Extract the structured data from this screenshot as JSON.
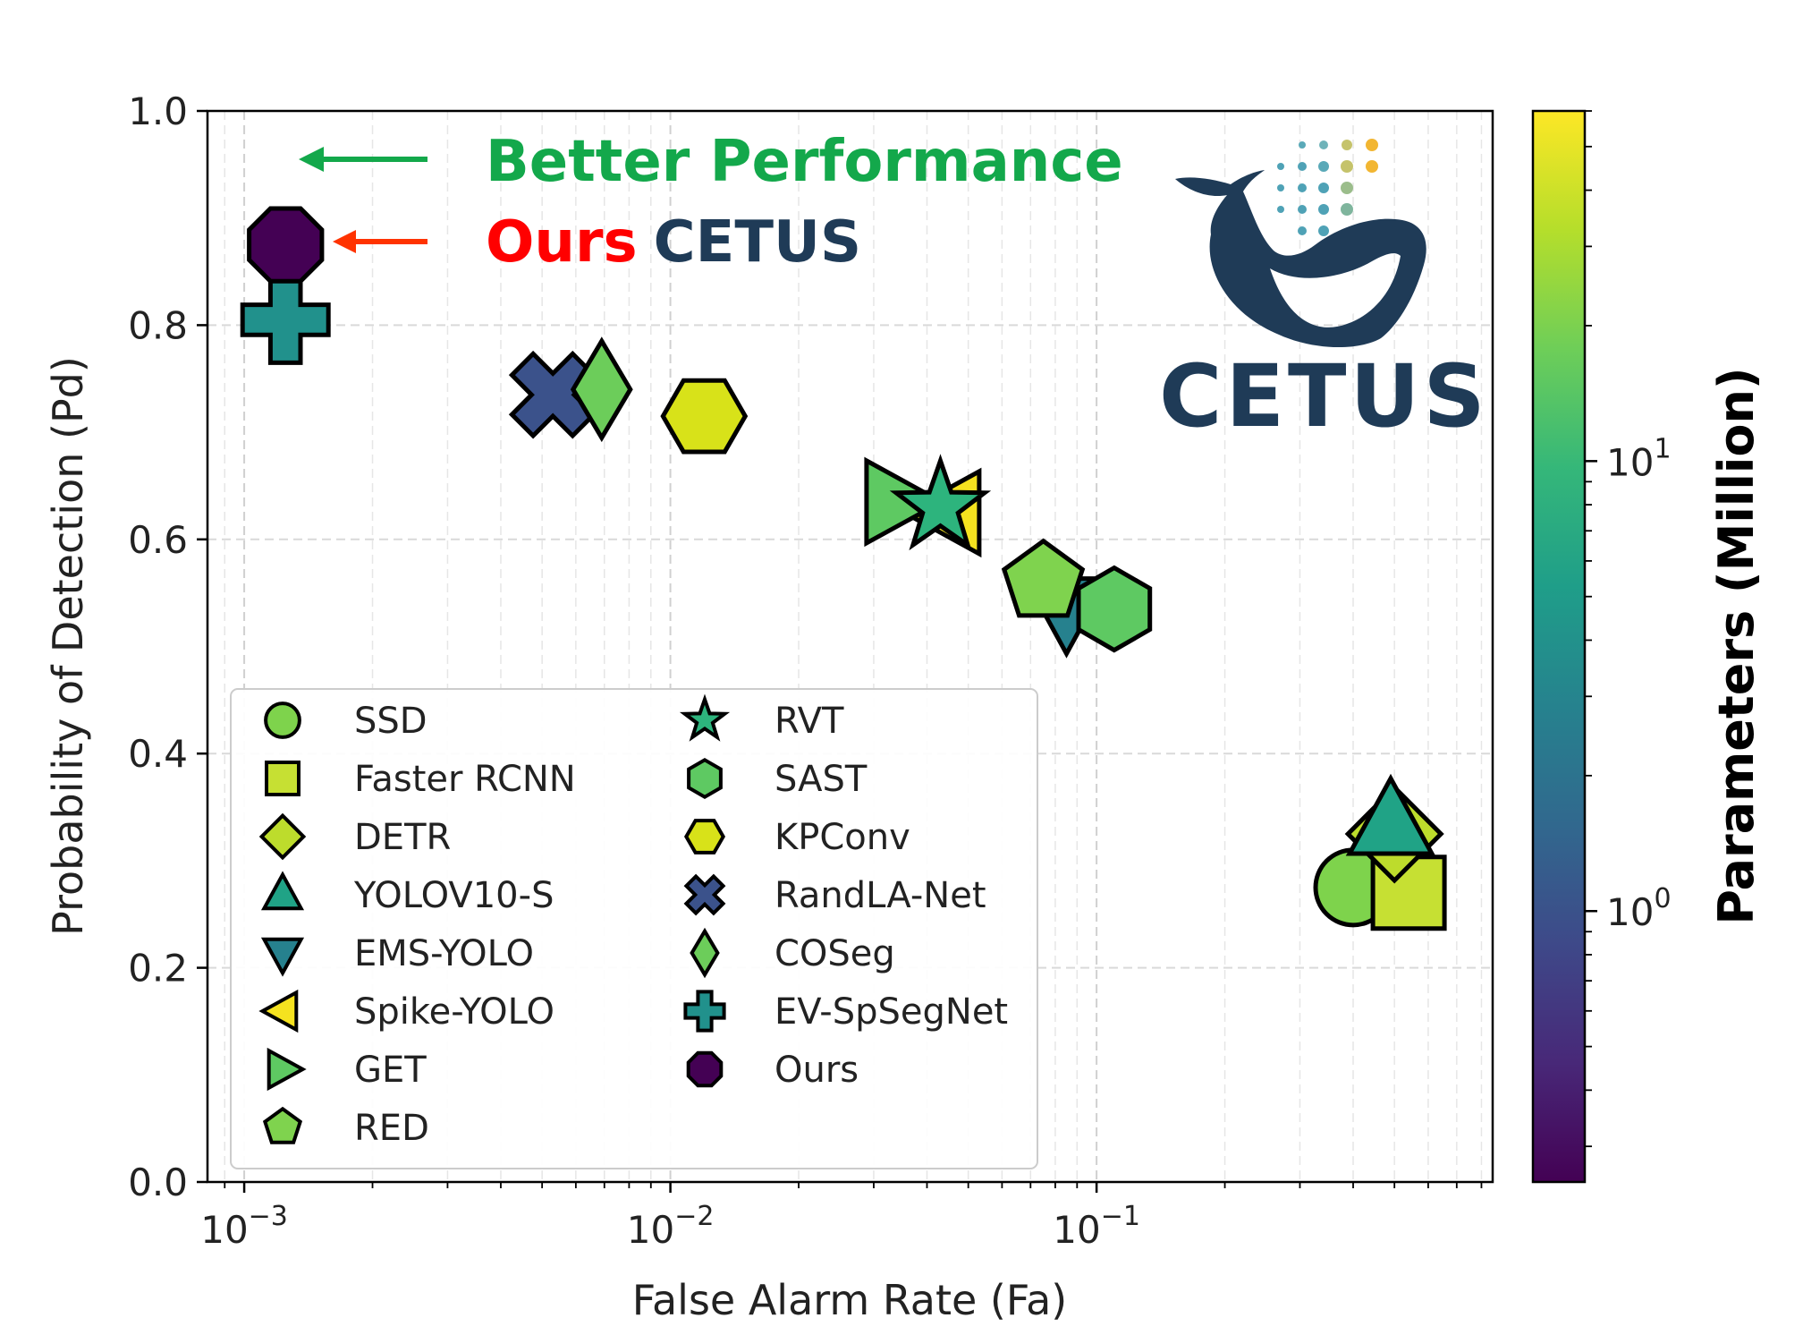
{
  "chart_data": {
    "type": "scatter",
    "xlabel": "False Alarm Rate (Fa)",
    "ylabel": "Probability of Detection (Pd)",
    "xscale": "log",
    "xlim": [
      0.00082,
      0.85
    ],
    "ylim": [
      0.0,
      1.0
    ],
    "yticks": [
      "0.0",
      "0.2",
      "0.4",
      "0.6",
      "0.8",
      "1.0"
    ],
    "xticks": [
      {
        "base": "10",
        "exp": "−3",
        "value": 0.001
      },
      {
        "base": "10",
        "exp": "−2",
        "value": 0.01
      },
      {
        "base": "10",
        "exp": "−1",
        "value": 0.1
      }
    ],
    "grid": true,
    "legend_placement": "lower-left",
    "colorbar": {
      "label": "Parameters (Million)",
      "scale": "log",
      "range": [
        0.25,
        60
      ],
      "ticks": [
        {
          "base": "10",
          "exp": "1",
          "value": 10
        },
        {
          "base": "10",
          "exp": "0",
          "value": 1
        }
      ],
      "colors": [
        "#440154",
        "#482878",
        "#3e4989",
        "#31688e",
        "#26828e",
        "#1f9e89",
        "#35b779",
        "#6ece58",
        "#b5de2b",
        "#fde725"
      ]
    },
    "series": [
      {
        "name": "SSD",
        "marker": "circle",
        "x": 0.4,
        "y": 0.275,
        "color": "#7ed34c"
      },
      {
        "name": "Faster RCNN",
        "marker": "square",
        "x": 0.54,
        "y": 0.27,
        "color": "#c6e033"
      },
      {
        "name": "DETR",
        "marker": "diamond",
        "x": 0.5,
        "y": 0.325,
        "color": "#bddc2c"
      },
      {
        "name": "YOLOV10-S",
        "marker": "triangle-up",
        "x": 0.49,
        "y": 0.335,
        "color": "#20a386"
      },
      {
        "name": "EMS-YOLO",
        "marker": "triangle-down",
        "x": 0.085,
        "y": 0.535,
        "color": "#26818e"
      },
      {
        "name": "Spike-YOLO",
        "marker": "triangle-left",
        "x": 0.045,
        "y": 0.625,
        "color": "#f5e21f"
      },
      {
        "name": "GET",
        "marker": "triangle-right",
        "x": 0.034,
        "y": 0.635,
        "color": "#5ec962"
      },
      {
        "name": "RED",
        "marker": "pentagon",
        "x": 0.075,
        "y": 0.56,
        "color": "#7fd34e"
      },
      {
        "name": "RVT",
        "marker": "star",
        "x": 0.043,
        "y": 0.63,
        "color": "#2db47d"
      },
      {
        "name": "SAST",
        "marker": "hexagon",
        "x": 0.11,
        "y": 0.535,
        "color": "#5ec962"
      },
      {
        "name": "KPConv",
        "marker": "hexagon2",
        "x": 0.012,
        "y": 0.715,
        "color": "#d8e219"
      },
      {
        "name": "RandLA-Net",
        "marker": "x",
        "x": 0.0053,
        "y": 0.735,
        "color": "#3b528b"
      },
      {
        "name": "COSeg",
        "marker": "thin-diamond",
        "x": 0.0069,
        "y": 0.74,
        "color": "#6ccd5a"
      },
      {
        "name": "EV-SpSegNet",
        "marker": "plus",
        "x": 0.00125,
        "y": 0.805,
        "color": "#21918c"
      },
      {
        "name": "Ours",
        "marker": "octagon",
        "x": 0.00125,
        "y": 0.875,
        "color": "#440154"
      }
    ],
    "annotations": {
      "better_performance": {
        "text": "Better Performance",
        "color": "#13a84b"
      },
      "ours_word": {
        "text": "Ours",
        "color": "#ff0000"
      },
      "cetus_word": {
        "text": "CETUS",
        "color": "#1f3b57"
      }
    },
    "logo": {
      "text": "CETUS",
      "icon": "whale-icon"
    }
  }
}
